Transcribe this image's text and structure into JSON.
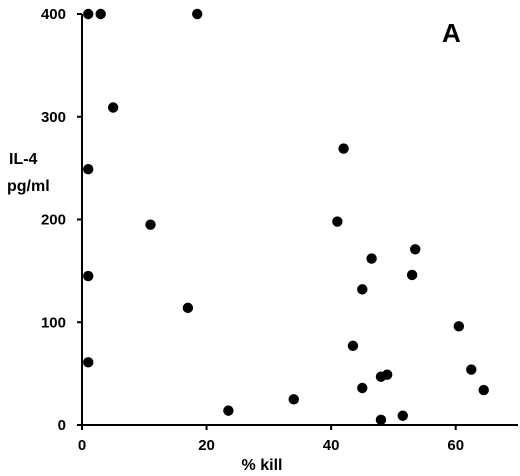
{
  "chart_data": {
    "type": "scatter",
    "panel_label": "A",
    "xlabel": "% kill",
    "ylabel_lines": [
      "IL-4",
      "pg/ml"
    ],
    "xlim": [
      0,
      70
    ],
    "ylim": [
      0,
      400
    ],
    "x_ticks": [
      0,
      20,
      40,
      60
    ],
    "y_ticks": [
      0,
      100,
      200,
      300,
      400
    ],
    "marker_color": "#000000",
    "points": [
      {
        "x": 1,
        "y": 400
      },
      {
        "x": 3,
        "y": 400
      },
      {
        "x": 18.5,
        "y": 400
      },
      {
        "x": 5,
        "y": 309
      },
      {
        "x": 1,
        "y": 249
      },
      {
        "x": 11,
        "y": 195
      },
      {
        "x": 1,
        "y": 145
      },
      {
        "x": 17,
        "y": 114
      },
      {
        "x": 1,
        "y": 61
      },
      {
        "x": 23.5,
        "y": 14
      },
      {
        "x": 34,
        "y": 25
      },
      {
        "x": 42,
        "y": 269
      },
      {
        "x": 41,
        "y": 198
      },
      {
        "x": 46.5,
        "y": 162
      },
      {
        "x": 53.5,
        "y": 171
      },
      {
        "x": 53,
        "y": 146
      },
      {
        "x": 45,
        "y": 132
      },
      {
        "x": 43.5,
        "y": 77
      },
      {
        "x": 45,
        "y": 36
      },
      {
        "x": 48,
        "y": 47
      },
      {
        "x": 49,
        "y": 49
      },
      {
        "x": 48,
        "y": 5
      },
      {
        "x": 51.5,
        "y": 9
      },
      {
        "x": 60.5,
        "y": 96
      },
      {
        "x": 62.5,
        "y": 54
      },
      {
        "x": 64.5,
        "y": 34
      }
    ]
  }
}
